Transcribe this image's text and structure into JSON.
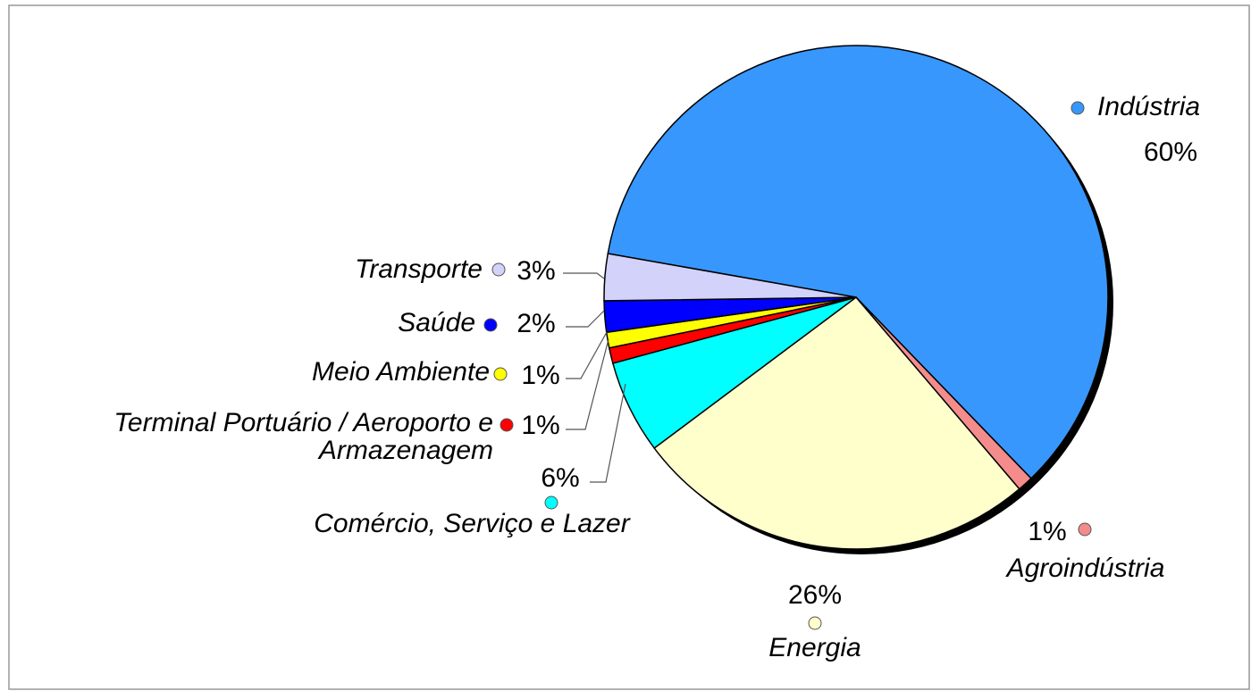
{
  "chart_data": {
    "type": "pie",
    "categories": [
      "Indústria",
      "Agroindústria",
      "Energia",
      "Comércio, Serviço e Lazer",
      "Terminal Portuário / Aeroporto e Armazenagem",
      "Meio Ambiente",
      "Saúde",
      "Transporte"
    ],
    "values": [
      60,
      1,
      26,
      6,
      1,
      1,
      2,
      3
    ],
    "value_labels": [
      "60%",
      "1%",
      "26%",
      "6%",
      "1%",
      "1%",
      "2%",
      "3%"
    ],
    "colors": [
      "#3897fc",
      "#f48c8c",
      "#ffffcc",
      "#00ffff",
      "#ff0000",
      "#ffff00",
      "#0000ff",
      "#d2d2fa"
    ]
  }
}
